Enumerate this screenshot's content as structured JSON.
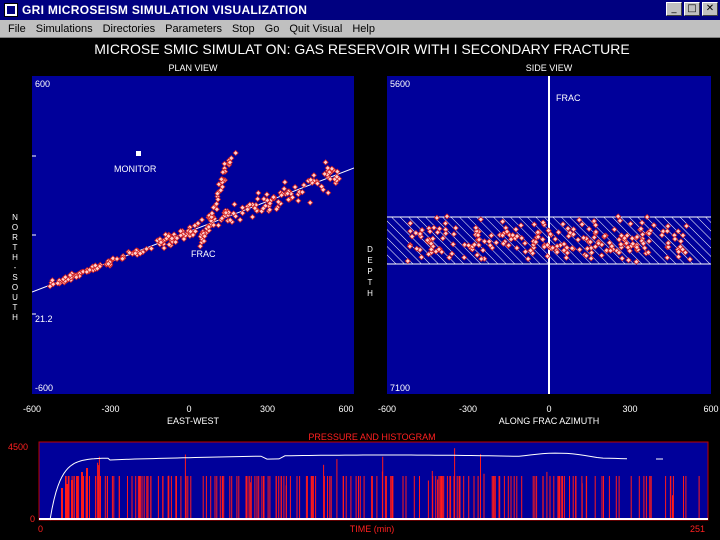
{
  "window": {
    "title": "GRI MICROSEISM SIMULATION VISUALIZATION",
    "minimize_glyph": "_",
    "maximize_glyph": "□",
    "close_glyph": "✕"
  },
  "menu": [
    {
      "label": "File"
    },
    {
      "label": "Simulations"
    },
    {
      "label": "Directories"
    },
    {
      "label": "Parameters"
    },
    {
      "label": "Stop"
    },
    {
      "label": "Go"
    },
    {
      "label": "Quit Visual"
    },
    {
      "label": "Help"
    }
  ],
  "main_title": "MICROSE SMIC SIMULAT ON: GAS RESERVOIR WITH I SECONDARY FRACTURE",
  "colors": {
    "panel_bg": "#00009a",
    "point_fill": "#ffd0d0",
    "point_stroke": "#d02020",
    "hist_bar": "#ff1a1a",
    "label_red": "#ff2020",
    "frame_red": "#c00000"
  },
  "plan_view": {
    "title": "PLAN VIEW",
    "y_top_label": "600",
    "y_mid_label": "21.2",
    "y_bottom_label": "-600",
    "x_ticks": [
      "-600",
      "-300",
      "0",
      "300",
      "600"
    ],
    "x_label": "EAST-WEST",
    "y_label_letters": [
      "N",
      "O",
      "R",
      "T",
      "H",
      "-",
      "S",
      "O",
      "U",
      "T",
      "H"
    ],
    "monitor_label": "MONITOR",
    "frac_label": "FRAC"
  },
  "side_view": {
    "title": "SIDE VIEW",
    "y_top_label": "5600",
    "y_bottom_label": "7100",
    "x_ticks": [
      "-600",
      "-300",
      "0",
      "300",
      "600"
    ],
    "x_label": "ALONG FRAC AZIMUTH",
    "y_label_letters": [
      "D",
      "E",
      "P",
      "T",
      "H"
    ],
    "frac_label": "FRAC"
  },
  "pressure": {
    "title": "PRESSURE AND HISTOGRAM",
    "y_top_label": "4500",
    "y_bottom_label": "0",
    "x_start_label": "0",
    "x_end_label": "251",
    "x_label": "TIME (min)"
  }
}
